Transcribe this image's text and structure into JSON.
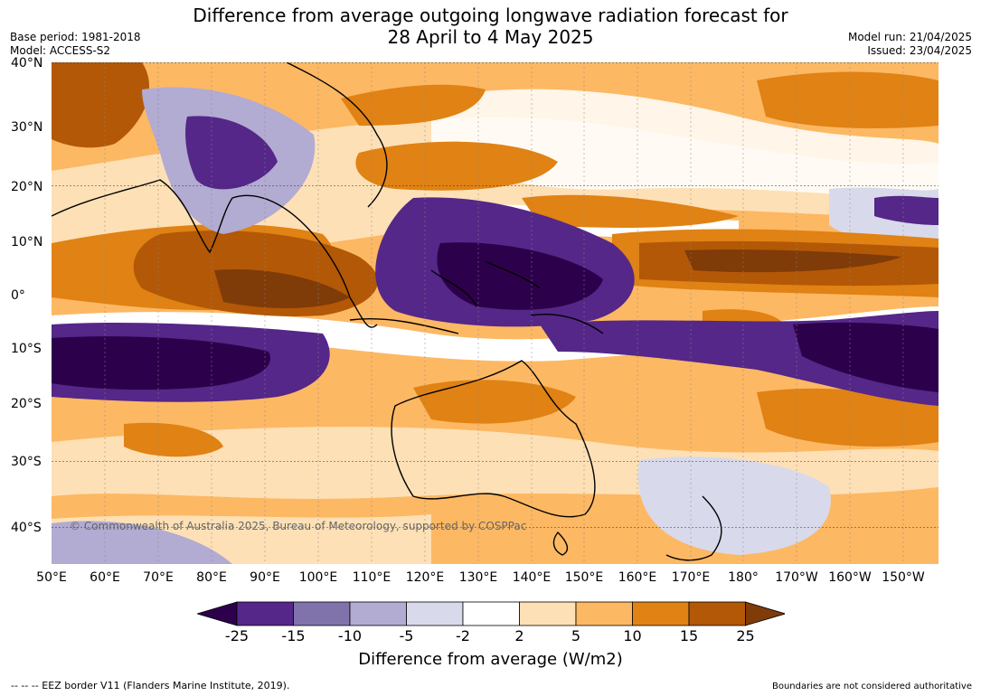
{
  "title_line1": "Difference from average outgoing longwave radiation forecast for",
  "title_line2": "28 April to 4 May 2025",
  "base_period": "Base period: 1981-2018",
  "model": "Model: ACCESS-S2",
  "model_run": "Model run: 21/04/2025",
  "issued": "Issued: 23/04/2025",
  "lat_labels": [
    "40°N",
    "30°N",
    "20°N",
    "10°N",
    "0°",
    "10°S",
    "20°S",
    "30°S",
    "40°S"
  ],
  "lon_labels": [
    "50°E",
    "60°E",
    "70°E",
    "80°E",
    "90°E",
    "100°E",
    "110°E",
    "120°E",
    "130°E",
    "140°E",
    "150°E",
    "160°E",
    "170°E",
    "180°",
    "170°W",
    "160°W",
    "150°W"
  ],
  "copyright": "© Commonwealth of Australia 2025, Bureau of Meteorology, supported by COSPPac",
  "colorbar": {
    "ticks": [
      "-25",
      "-15",
      "-10",
      "-5",
      "-2",
      "2",
      "5",
      "10",
      "15",
      "25"
    ],
    "colors": [
      "#2d004b",
      "#542788",
      "#8073ac",
      "#b2abd2",
      "#d8daeb",
      "#ffffff",
      "#fee0b6",
      "#fdb863",
      "#e08214",
      "#b35806",
      "#7f3b08"
    ],
    "title": "Difference from average (W/m2)"
  },
  "footer_left": "--  --  -- EEZ border V11 (Flanders Marine Institute, 2019).",
  "footer_right": "Boundaries are not considered authoritative"
}
